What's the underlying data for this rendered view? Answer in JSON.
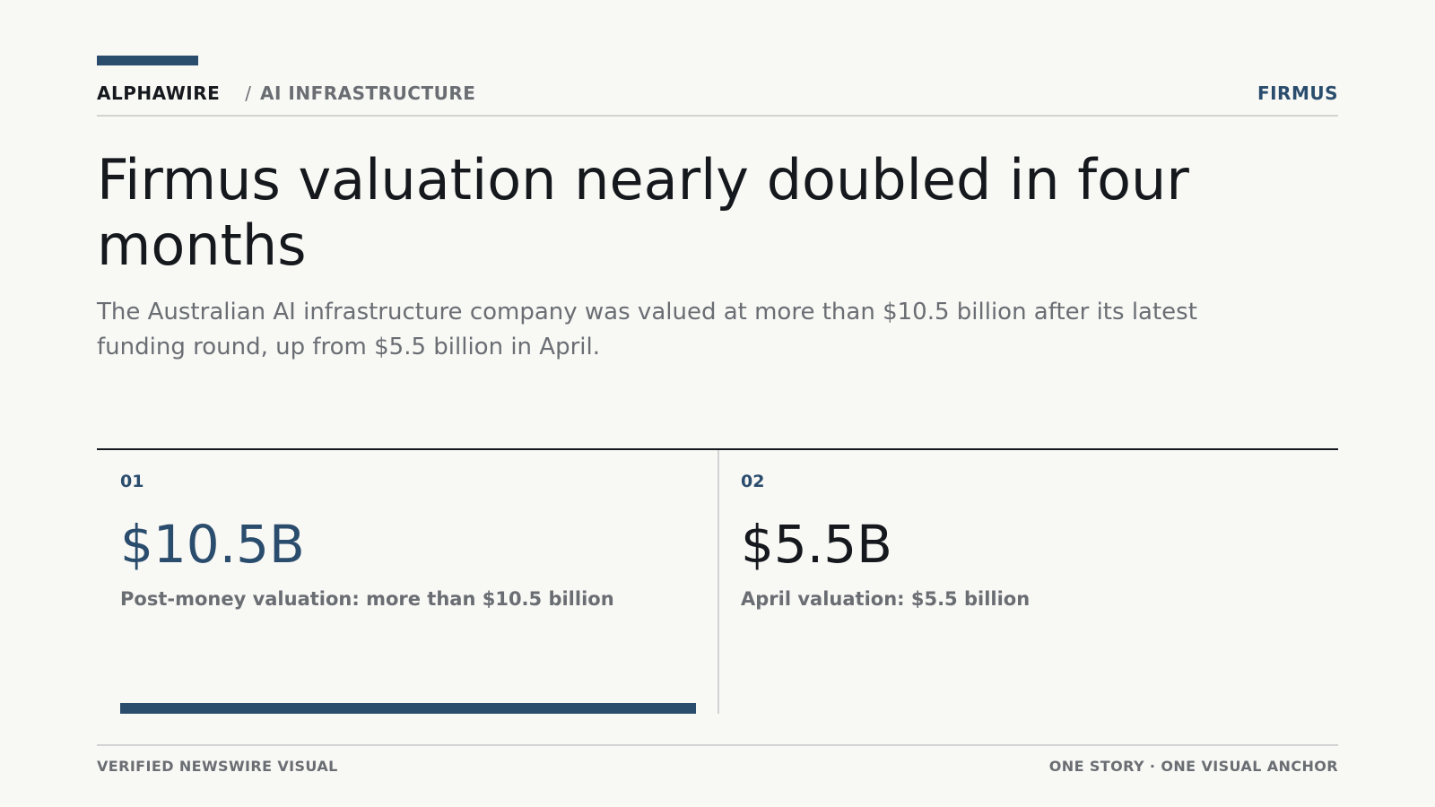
{
  "header": {
    "brand": "ALPHAWIRE",
    "separator": "/",
    "section": "AI INFRASTRUCTURE",
    "company": "FIRMUS"
  },
  "headline": "Firmus valuation nearly doubled in four months",
  "dek": "The Australian AI infrastructure company was valued at more than $10.5 billion after its latest funding round, up from $5.5 billion in April.",
  "stats": [
    {
      "number": "01",
      "value": "$10.5B",
      "label": "Post-money valuation: more than $10.5 billion",
      "bar_fraction": 1.0
    },
    {
      "number": "02",
      "value": "$5.5B",
      "label": "April valuation: $5.5 billion"
    }
  ],
  "footer": {
    "left": "VERIFIED NEWSWIRE VISUAL",
    "right": "ONE STORY · ONE VISUAL ANCHOR"
  },
  "colors": {
    "accent": "#2b4d6d",
    "background": "#f8f8f5",
    "text": "#15181c",
    "muted": "#6a6e73",
    "rule": "#d2d3d3"
  }
}
